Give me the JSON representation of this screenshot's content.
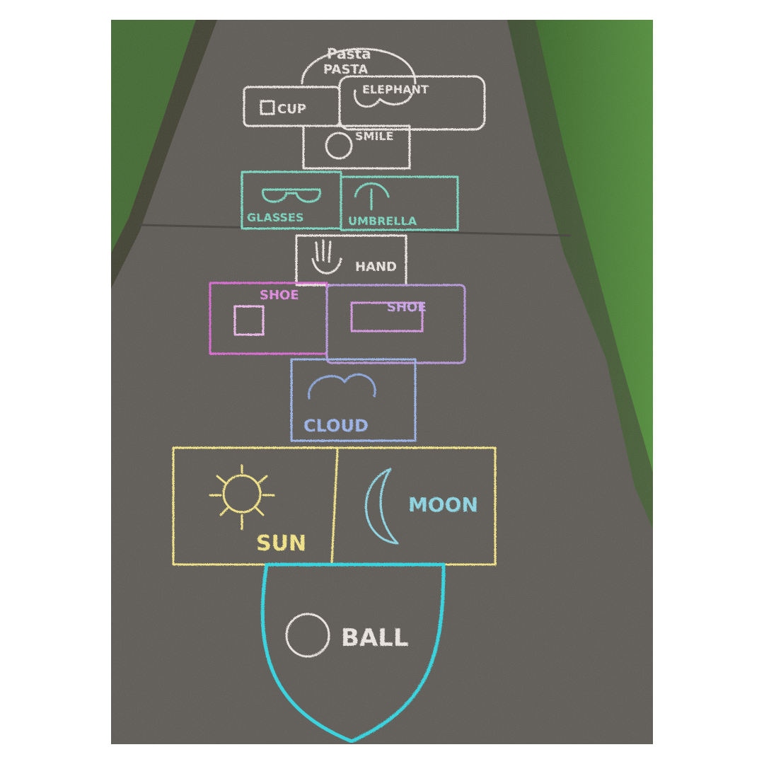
{
  "photo": {
    "subject": "chalk hopscotch drawing on sidewalk",
    "colors": {
      "frame": "#ffffff",
      "concrete": "#5b5752",
      "grass": "#3f7a2c",
      "chalk_white": "#e8e2dc",
      "chalk_teal": "#7fd6c0",
      "chalk_pink": "#d86fd2",
      "chalk_purple": "#b79ad8",
      "chalk_lightblue": "#9db4e6",
      "chalk_yellow": "#efe08a",
      "chalk_cyan": "#3bd3de"
    }
  },
  "squares": {
    "pasta_top": "Pasta",
    "pasta_bottom": "PASTA",
    "cup": "CUP",
    "elephant": "ELEPHANT",
    "smile": "SMILE",
    "glasses": "GLASSES",
    "umbrella": "UMBRELLA",
    "hand": "HAND",
    "shoe_left": "SHOE",
    "shoe_right": "SHOE",
    "cloud": "CLOUD",
    "sun": "SUN",
    "moon": "MOON",
    "ball": "BALL"
  }
}
